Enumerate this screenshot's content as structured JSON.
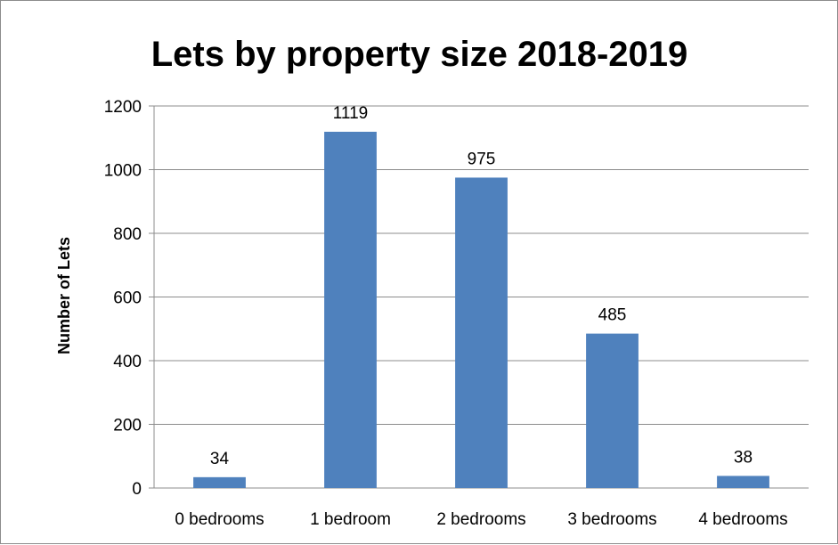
{
  "chart_data": {
    "type": "bar",
    "title": "Lets by property size 2018-2019",
    "xlabel": "",
    "ylabel": "Number of Lets",
    "categories": [
      "0 bedrooms",
      "1 bedroom",
      "2 bedrooms",
      "3 bedrooms",
      "4 bedrooms"
    ],
    "values": [
      34,
      1119,
      975,
      485,
      38
    ],
    "data_labels": [
      "34",
      "1119",
      "975",
      "485",
      "38"
    ],
    "ylim": [
      0,
      1200
    ],
    "yticks": [
      "0",
      "200",
      "400",
      "600",
      "800",
      "1000",
      "1200"
    ],
    "grid": true,
    "legend": "none",
    "colors": {
      "bar": "#4f81bd",
      "grid": "#8c8c8c",
      "axis": "#8c8c8c"
    }
  }
}
